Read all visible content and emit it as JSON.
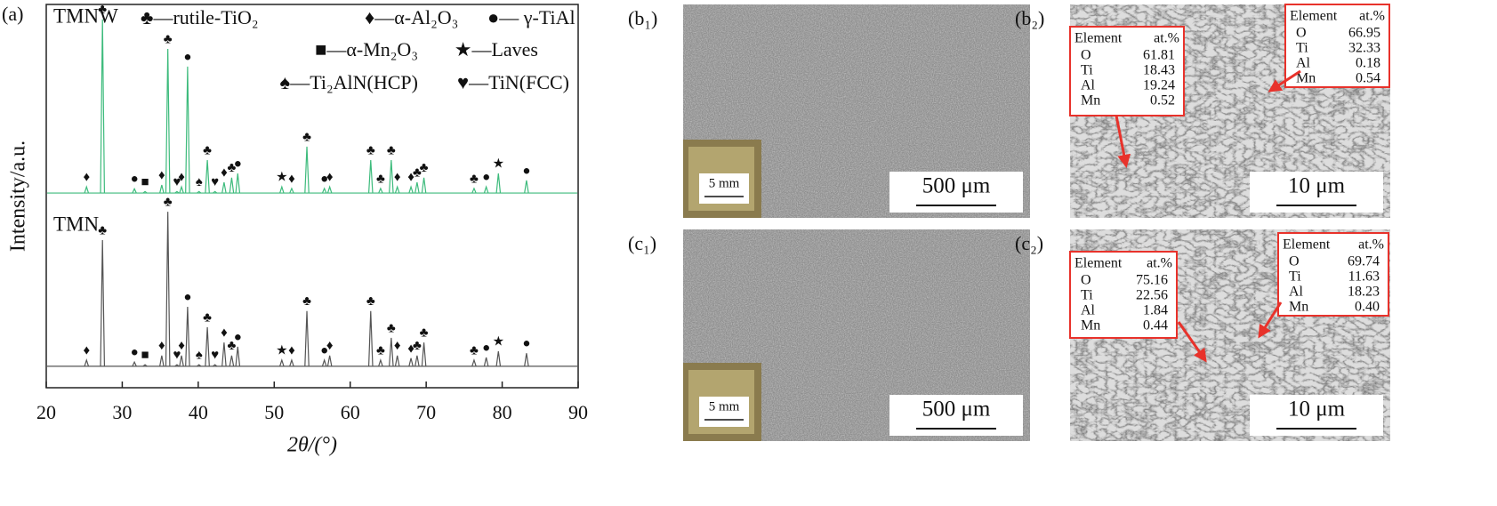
{
  "chart_data": {
    "type": "line",
    "panel_label": "(a)",
    "x_label": "2θ/(°)",
    "y_label": "Intensity/a.u.",
    "xlim": [
      20,
      90
    ],
    "xticks": [
      20,
      30,
      40,
      50,
      60,
      70,
      80,
      90
    ],
    "ylim": [
      0,
      100
    ],
    "legend": [
      "♣—rutile-TiO₂",
      "♦—α-Al₂O₃",
      "●— γ-TiAl",
      "■—α-Mn₂O₃",
      "★—Laves",
      "♠—Ti₂AlN(HCP)",
      "♥—TiN(FCC)"
    ],
    "x": [
      25.3,
      27.4,
      31.6,
      33.0,
      35.2,
      36.0,
      37.2,
      37.8,
      38.6,
      40.1,
      41.2,
      42.2,
      43.4,
      44.4,
      45.2,
      51.0,
      52.3,
      54.3,
      56.6,
      57.3,
      62.7,
      64.0,
      65.4,
      66.2,
      68.0,
      68.8,
      69.7,
      76.3,
      77.9,
      79.5,
      83.2
    ],
    "phases": [
      "♦",
      "♣",
      "●",
      "■",
      "♦",
      "♣",
      "♥",
      "♦",
      "●",
      "♠",
      "♣",
      "♥",
      "♦",
      "♣",
      "●",
      "★",
      "♦",
      "♣",
      "●",
      "♦",
      "♣",
      "♣",
      "♣",
      "♦",
      "♦",
      "♣",
      "♣",
      "♣",
      "●",
      "★",
      "●"
    ],
    "series": [
      {
        "name": "TMNW",
        "color": "#3dbb7c",
        "offset": 50.8,
        "values": [
          52.4,
          96.1,
          51.9,
          51.2,
          52.9,
          88.4,
          51.2,
          52.4,
          83.8,
          51.2,
          59.4,
          51.2,
          53.6,
          54.8,
          55.9,
          52.4,
          52.0,
          62.9,
          52.0,
          52.4,
          59.4,
          52.0,
          59.4,
          52.4,
          52.4,
          53.6,
          54.8,
          52.0,
          52.4,
          55.9,
          54.1
        ]
      },
      {
        "name": "TMN",
        "color": "#555555",
        "offset": 5.6,
        "values": [
          7.2,
          38.5,
          6.7,
          6.0,
          8.4,
          45.9,
          6.0,
          8.4,
          21.1,
          6.0,
          15.8,
          6.0,
          11.8,
          8.4,
          10.7,
          7.2,
          7.2,
          20.0,
          7.2,
          8.4,
          20.0,
          7.2,
          13.0,
          8.4,
          7.7,
          8.4,
          11.8,
          7.2,
          7.9,
          9.5,
          9.0
        ]
      }
    ]
  },
  "panels": [
    {
      "label": "(b₁)",
      "scale_bar": "500 μm",
      "inset": "5 mm"
    },
    {
      "label": "(b₂)",
      "scale_bar": "10 μm",
      "tables": [
        {
          "header": [
            "Element",
            "at.%"
          ],
          "rows": [
            [
              "O",
              "61.81"
            ],
            [
              "Ti",
              "18.43"
            ],
            [
              "Al",
              "19.24"
            ],
            [
              "Mn",
              "0.52"
            ]
          ]
        },
        {
          "header": [
            "Element",
            "at.%"
          ],
          "rows": [
            [
              "O",
              "66.95"
            ],
            [
              "Ti",
              "32.33"
            ],
            [
              "Al",
              "0.18"
            ],
            [
              "Mn",
              "0.54"
            ]
          ]
        }
      ]
    },
    {
      "label": "(c₁)",
      "scale_bar": "500 μm",
      "inset": "5 mm"
    },
    {
      "label": "(c₂)",
      "scale_bar": "10 μm",
      "tables": [
        {
          "header": [
            "Element",
            "at.%"
          ],
          "rows": [
            [
              "O",
              "75.16"
            ],
            [
              "Ti",
              "22.56"
            ],
            [
              "Al",
              "1.84"
            ],
            [
              "Mn",
              "0.44"
            ]
          ]
        },
        {
          "header": [
            "Element",
            "at.%"
          ],
          "rows": [
            [
              "O",
              "69.74"
            ],
            [
              "Ti",
              "11.63"
            ],
            [
              "Al",
              "18.23"
            ],
            [
              "Mn",
              "0.40"
            ]
          ]
        }
      ]
    }
  ]
}
